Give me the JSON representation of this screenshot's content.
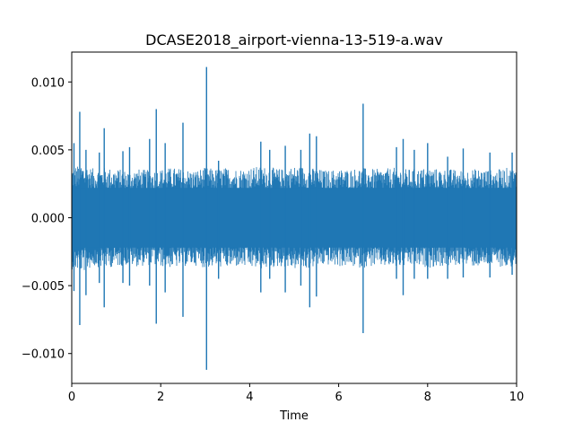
{
  "chart_data": {
    "type": "line",
    "title": "DCASE2018_airport-vienna-13-519-a.wav",
    "xlabel": "Time",
    "ylabel": "",
    "xlim": [
      0,
      10
    ],
    "ylim": [
      -0.0122,
      0.0122
    ],
    "x_ticks": [
      0,
      2,
      4,
      6,
      8,
      10
    ],
    "x_tick_labels": [
      "0",
      "2",
      "4",
      "6",
      "8",
      "10"
    ],
    "y_ticks": [
      0.01,
      0.005,
      0.0,
      -0.005,
      -0.01
    ],
    "y_tick_labels": [
      "0.010",
      "0.005",
      "0.000",
      "−0.005",
      "−0.010"
    ],
    "grid": false,
    "series": [
      {
        "color": "#1f77b4",
        "envelope_time": [
          0,
          0.25,
          0.5,
          0.75,
          1.0,
          1.25,
          1.5,
          1.75,
          2.0,
          2.25,
          2.5,
          2.75,
          3.0,
          3.25,
          3.5,
          3.75,
          4.0,
          4.25,
          4.5,
          4.75,
          5.0,
          5.25,
          5.5,
          5.75,
          6.0,
          6.25,
          6.5,
          6.75,
          7.0,
          7.25,
          7.5,
          7.75,
          8.0,
          8.25,
          8.5,
          8.75,
          9.0,
          9.25,
          9.5,
          9.75,
          10.0
        ],
        "envelope_amplitude": [
          0.0038,
          0.004,
          0.0036,
          0.0037,
          0.0036,
          0.0035,
          0.0036,
          0.0035,
          0.0036,
          0.0037,
          0.0036,
          0.0035,
          0.0037,
          0.0036,
          0.0037,
          0.0036,
          0.0037,
          0.0038,
          0.0037,
          0.0036,
          0.0038,
          0.0038,
          0.0036,
          0.0035,
          0.0036,
          0.0036,
          0.0037,
          0.0036,
          0.0036,
          0.0037,
          0.0036,
          0.0036,
          0.0037,
          0.0036,
          0.0036,
          0.0035,
          0.0036,
          0.0036,
          0.0035,
          0.0037,
          0.0036
        ],
        "spikes": [
          {
            "t": 0.05,
            "max": 0.0055,
            "min": -0.0054
          },
          {
            "t": 0.18,
            "max": 0.0078,
            "min": -0.0079
          },
          {
            "t": 0.32,
            "max": 0.005,
            "min": -0.0057
          },
          {
            "t": 0.62,
            "max": 0.0048,
            "min": -0.0048
          },
          {
            "t": 0.73,
            "max": 0.0066,
            "min": -0.0066
          },
          {
            "t": 1.15,
            "max": 0.0049,
            "min": -0.0048
          },
          {
            "t": 1.3,
            "max": 0.0052,
            "min": -0.005
          },
          {
            "t": 1.75,
            "max": 0.0058,
            "min": -0.005
          },
          {
            "t": 1.9,
            "max": 0.008,
            "min": -0.0078
          },
          {
            "t": 2.1,
            "max": 0.0055,
            "min": -0.0055
          },
          {
            "t": 2.5,
            "max": 0.007,
            "min": -0.0073
          },
          {
            "t": 3.03,
            "max": 0.0111,
            "min": -0.0112
          },
          {
            "t": 3.3,
            "max": 0.0042,
            "min": -0.0045
          },
          {
            "t": 4.25,
            "max": 0.0056,
            "min": -0.0055
          },
          {
            "t": 4.45,
            "max": 0.005,
            "min": -0.0045
          },
          {
            "t": 4.8,
            "max": 0.0053,
            "min": -0.0055
          },
          {
            "t": 5.15,
            "max": 0.005,
            "min": -0.005
          },
          {
            "t": 5.35,
            "max": 0.0062,
            "min": -0.0066
          },
          {
            "t": 5.5,
            "max": 0.006,
            "min": -0.0058
          },
          {
            "t": 6.55,
            "max": 0.0084,
            "min": -0.0085
          },
          {
            "t": 7.3,
            "max": 0.0052,
            "min": -0.0045
          },
          {
            "t": 7.45,
            "max": 0.0058,
            "min": -0.0057
          },
          {
            "t": 7.7,
            "max": 0.005,
            "min": -0.0045
          },
          {
            "t": 8.0,
            "max": 0.0055,
            "min": -0.0045
          },
          {
            "t": 8.45,
            "max": 0.0045,
            "min": -0.0045
          },
          {
            "t": 8.8,
            "max": 0.0051,
            "min": -0.0044
          },
          {
            "t": 9.4,
            "max": 0.0048,
            "min": -0.0044
          },
          {
            "t": 9.9,
            "max": 0.0048,
            "min": -0.0042
          }
        ]
      }
    ]
  }
}
